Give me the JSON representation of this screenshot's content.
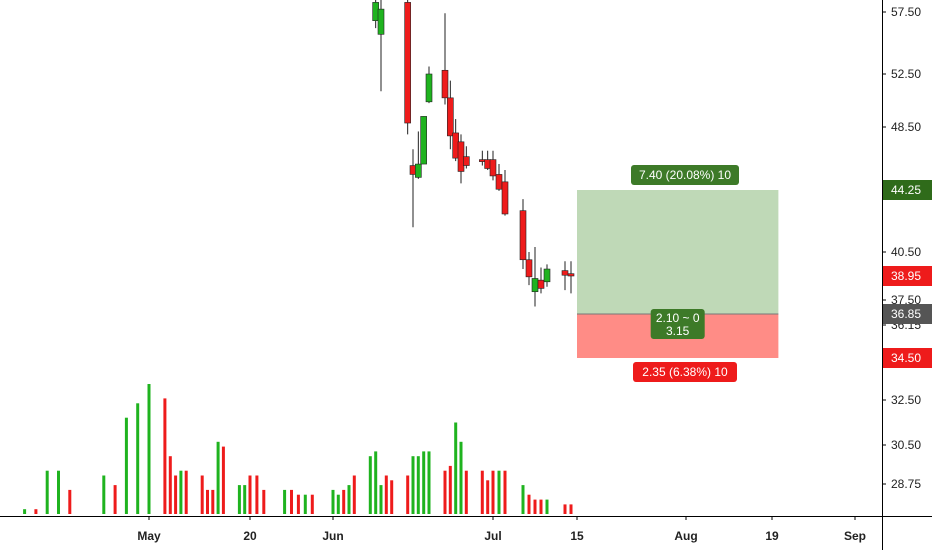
{
  "chart_data": {
    "type": "candlestick",
    "y_axis": {
      "tick_labels": [
        "57.50",
        "52.50",
        "48.50",
        "40.50",
        "37.50",
        "36.15",
        "32.50",
        "30.50",
        "28.75"
      ],
      "tick_values": [
        57.5,
        52.5,
        48.5,
        40.5,
        37.5,
        36.15,
        32.5,
        30.5,
        28.75
      ]
    },
    "x_axis": {
      "tick_labels": [
        "May",
        "20",
        "Jun",
        "Jul",
        "15",
        "Aug",
        "19",
        "Sep"
      ],
      "tick_dates": [
        "2020-05-01",
        "2020-05-20",
        "2020-06-01",
        "2020-07-01",
        "2020-07-15",
        "2020-08-01",
        "2020-08-19",
        "2020-09-01"
      ]
    },
    "candles": [
      {
        "date": "2020-06-09",
        "open": 56.8,
        "high": 62.0,
        "low": 56.2,
        "close": 58.5
      },
      {
        "date": "2020-06-10",
        "open": 55.7,
        "high": 62.0,
        "low": 51.2,
        "close": 57.8
      },
      {
        "date": "2020-06-15",
        "open": 58.5,
        "high": 59.5,
        "low": 48.0,
        "close": 48.8
      },
      {
        "date": "2020-06-16",
        "open": 45.9,
        "high": 47.0,
        "low": 42.0,
        "close": 45.3
      },
      {
        "date": "2020-06-17",
        "open": 45.1,
        "high": 48.2,
        "low": 45.0,
        "close": 46.0
      },
      {
        "date": "2020-06-18",
        "open": 46.0,
        "high": 49.3,
        "low": 46.0,
        "close": 49.3
      },
      {
        "date": "2020-06-19",
        "open": 50.4,
        "high": 53.1,
        "low": 50.3,
        "close": 52.5
      },
      {
        "date": "2020-06-22",
        "open": 52.8,
        "high": 57.4,
        "low": 50.2,
        "close": 50.7
      },
      {
        "date": "2020-06-23",
        "open": 50.7,
        "high": 52.0,
        "low": 47.0,
        "close": 47.9
      },
      {
        "date": "2020-06-24",
        "open": 48.1,
        "high": 49.1,
        "low": 46.2,
        "close": 46.4
      },
      {
        "date": "2020-06-25",
        "open": 47.5,
        "high": 48.0,
        "low": 44.7,
        "close": 45.5
      },
      {
        "date": "2020-06-26",
        "open": 46.5,
        "high": 47.2,
        "low": 45.7,
        "close": 45.9
      },
      {
        "date": "2020-06-29",
        "open": 46.3,
        "high": 46.9,
        "low": 45.9,
        "close": 46.2
      },
      {
        "date": "2020-06-30",
        "open": 46.3,
        "high": 46.9,
        "low": 45.6,
        "close": 45.7
      },
      {
        "date": "2020-07-01",
        "open": 46.3,
        "high": 46.9,
        "low": 44.9,
        "close": 45.2
      },
      {
        "date": "2020-07-02",
        "open": 45.3,
        "high": 46.0,
        "low": 44.2,
        "close": 44.3
      },
      {
        "date": "2020-07-03",
        "open": 44.8,
        "high": 45.6,
        "low": 42.7,
        "close": 42.8
      },
      {
        "date": "2020-07-06",
        "open": 43.0,
        "high": 43.7,
        "low": 39.4,
        "close": 40.0
      },
      {
        "date": "2020-07-07",
        "open": 40.0,
        "high": 40.5,
        "low": 38.4,
        "close": 38.9
      },
      {
        "date": "2020-07-08",
        "open": 38.0,
        "high": 40.8,
        "low": 37.2,
        "close": 38.8
      },
      {
        "date": "2020-07-09",
        "open": 38.7,
        "high": 39.5,
        "low": 37.9,
        "close": 38.2
      },
      {
        "date": "2020-07-10",
        "open": 38.6,
        "high": 39.7,
        "low": 38.3,
        "close": 39.4
      },
      {
        "date": "2020-07-13",
        "open": 39.3,
        "high": 39.9,
        "low": 38.1,
        "close": 39.0
      },
      {
        "date": "2020-07-14",
        "open": 39.1,
        "high": 39.9,
        "low": 37.9,
        "close": 38.95
      }
    ],
    "volume": {
      "dates": [
        "2020-04-20",
        "2020-04-21",
        "2020-04-22",
        "2020-04-23",
        "2020-04-24",
        "2020-04-27",
        "2020-04-28",
        "2020-04-29",
        "2020-04-30",
        "2020-05-01",
        "2020-05-04",
        "2020-05-05",
        "2020-05-06",
        "2020-05-07",
        "2020-05-08",
        "2020-05-11",
        "2020-05-12",
        "2020-05-13",
        "2020-05-14",
        "2020-05-15",
        "2020-05-18",
        "2020-05-19",
        "2020-05-20",
        "2020-05-21",
        "2020-05-22",
        "2020-05-25",
        "2020-05-26",
        "2020-05-27",
        "2020-05-28",
        "2020-05-29",
        "2020-06-01",
        "2020-06-02",
        "2020-06-03",
        "2020-06-04",
        "2020-06-05",
        "2020-06-08",
        "2020-06-09",
        "2020-06-10",
        "2020-06-11",
        "2020-06-12",
        "2020-06-15",
        "2020-06-16",
        "2020-06-17",
        "2020-06-18",
        "2020-06-19",
        "2020-06-22",
        "2020-06-23",
        "2020-06-24",
        "2020-06-25",
        "2020-06-26",
        "2020-06-29",
        "2020-06-30",
        "2020-07-01",
        "2020-07-02",
        "2020-07-03",
        "2020-07-06",
        "2020-07-07",
        "2020-07-08",
        "2020-07-09",
        "2020-07-10",
        "2020-07-13",
        "2020-07-14"
      ],
      "values": [
        1,
        1,
        9,
        9,
        5,
        8,
        6,
        20,
        23,
        27,
        24,
        12,
        8,
        9,
        9,
        8,
        5,
        5,
        15,
        14,
        6,
        6,
        8,
        8,
        5,
        5,
        5,
        4,
        4,
        4,
        5,
        4,
        5,
        6,
        8,
        12,
        13,
        6,
        8,
        7,
        8,
        12,
        12,
        13,
        13,
        9,
        10,
        19,
        15,
        9,
        9,
        7,
        9,
        9,
        9,
        6,
        4,
        3,
        3,
        3,
        2,
        2
      ],
      "up": [
        true,
        false,
        true,
        true,
        false,
        true,
        false,
        true,
        true,
        true,
        false,
        false,
        false,
        true,
        false,
        false,
        false,
        false,
        true,
        false,
        true,
        true,
        false,
        false,
        false,
        true,
        false,
        false,
        true,
        false,
        true,
        true,
        false,
        true,
        false,
        true,
        true,
        true,
        false,
        false,
        false,
        true,
        true,
        true,
        true,
        false,
        false,
        true,
        true,
        false,
        false,
        false,
        false,
        true,
        false,
        true,
        false,
        false,
        false,
        true,
        false,
        false
      ]
    },
    "position_tool": {
      "entry": 36.85,
      "target": 44.25,
      "stop": 34.5,
      "start_date": "2020-07-15",
      "end_date": "2020-08-20",
      "target_label": "7.40 (20.08%) 10",
      "stop_label": "2.35 (6.38%) 10",
      "center_label_line1": "2.10 ~ 0",
      "center_label_line2": "3.15"
    },
    "price_tags": [
      {
        "label": "44.25",
        "value": 44.25,
        "color": "#2f6b1a"
      },
      {
        "label": "38.95",
        "value": 38.95,
        "color": "#ee1b1b"
      },
      {
        "label": "36.85",
        "value": 36.85,
        "color": "#555555"
      },
      {
        "label": "34.50",
        "value": 34.5,
        "color": "#ee1b1b"
      }
    ],
    "colors": {
      "up": "#1fb31f",
      "down": "#ee1b1b",
      "profit_zone": "#bfd9b7",
      "loss_zone": "#ff8c86",
      "profit_label_bg": "#3d7a28",
      "loss_label_bg": "#ee1b1b",
      "grid_axis": "#000000"
    }
  }
}
